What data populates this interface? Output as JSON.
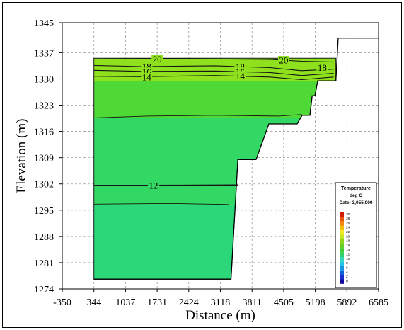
{
  "chart_data": {
    "type": "area",
    "title": "",
    "xlabel": "Distance (m)",
    "ylabel": "Elevation (m)",
    "xlim": [
      -350,
      6585
    ],
    "ylim": [
      1274,
      1345
    ],
    "x_ticks": [
      "-350",
      "344",
      "1037",
      "1731",
      "2424",
      "3118",
      "3811",
      "4505",
      "5198",
      "5892",
      "6585"
    ],
    "y_ticks": [
      "1274",
      "1281",
      "1288",
      "1295",
      "1302",
      "1309",
      "1316",
      "1323",
      "1330",
      "1337",
      "1345"
    ],
    "x_tick_values": [
      -350,
      344,
      1037,
      1731,
      2424,
      3118,
      3811,
      4505,
      5198,
      5892,
      6585
    ],
    "y_tick_values": [
      1274,
      1281,
      1288,
      1295,
      1302,
      1309,
      1316,
      1323,
      1330,
      1337,
      1345
    ],
    "grid": true,
    "surface_elevation": 1335.5,
    "bottom_profile": [
      [
        344,
        1276.6
      ],
      [
        3118,
        1276.6
      ],
      [
        3118,
        1276.6
      ],
      [
        3350,
        1276.6
      ],
      [
        3500,
        1308.5
      ],
      [
        3900,
        1308.5
      ],
      [
        4180,
        1318.0
      ],
      [
        4800,
        1318.0
      ],
      [
        4910,
        1320.3
      ],
      [
        5080,
        1320.3
      ],
      [
        5130,
        1325.5
      ],
      [
        5190,
        1325.5
      ],
      [
        5250,
        1329.5
      ],
      [
        5650,
        1329.5
      ],
      [
        5700,
        1340.9
      ],
      [
        6585,
        1340.9
      ]
    ],
    "contours": [
      {
        "label": "20",
        "points": [
          [
            344,
            1335.3
          ],
          [
            2000,
            1335.4
          ],
          [
            4200,
            1335.2
          ],
          [
            4900,
            1334.7
          ],
          [
            5600,
            1334.5
          ]
        ],
        "label_positions": [
          [
            1731,
            1335.3
          ],
          [
            4505,
            1335.0
          ]
        ]
      },
      {
        "label": "18",
        "points": [
          [
            344,
            1333.6
          ],
          [
            1400,
            1333.3
          ],
          [
            3000,
            1333.5
          ],
          [
            4200,
            1333.0
          ],
          [
            4900,
            1332.2
          ],
          [
            5600,
            1332.6
          ]
        ],
        "label_positions": [
          [
            1500,
            1333.3
          ],
          [
            3550,
            1333.2
          ],
          [
            5350,
            1333.0
          ]
        ]
      },
      {
        "label": "16",
        "points": [
          [
            344,
            1332.3
          ],
          [
            1400,
            1332.0
          ],
          [
            3000,
            1332.1
          ],
          [
            4200,
            1331.7
          ],
          [
            4900,
            1330.9
          ],
          [
            5600,
            1331.5
          ]
        ],
        "label_positions": [
          [
            1500,
            1331.9
          ],
          [
            3550,
            1331.9
          ]
        ]
      },
      {
        "label": "14",
        "points": [
          [
            344,
            1330.7
          ],
          [
            1400,
            1330.6
          ],
          [
            3000,
            1330.9
          ],
          [
            4200,
            1330.5
          ],
          [
            4900,
            1329.8
          ],
          [
            5600,
            1330.5
          ]
        ],
        "label_positions": [
          [
            1500,
            1330.5
          ],
          [
            3550,
            1330.7
          ]
        ]
      },
      {
        "label": "12",
        "points": [
          [
            344,
            1301.6
          ],
          [
            1500,
            1301.6
          ],
          [
            3500,
            1301.7
          ]
        ],
        "label_positions": [
          [
            1650,
            1301.6
          ]
        ]
      }
    ],
    "legend": {
      "title": "Temperature",
      "unit": "deg C",
      "date_label": "Date: 3,055.000",
      "placement": "bottom-right",
      "values": [
        "30",
        "28",
        "26",
        "24",
        "22",
        "20",
        "18",
        "16",
        "14",
        "12",
        "10",
        "8",
        "6",
        "4",
        "2",
        "0"
      ],
      "colors": [
        "#d21a00",
        "#e9540c",
        "#ef8b0a",
        "#f3bf09",
        "#eee91e",
        "#c4e621",
        "#8dd31e",
        "#62d02a",
        "#3fcf34",
        "#2fd06b",
        "#2fd6b9",
        "#21c5e2",
        "#1796e0",
        "#1460d8",
        "#1a2fd0",
        "#1209a5"
      ]
    },
    "fill_colors": {
      "surface": "#8fe11e",
      "middle": "#4fd936",
      "deep": "#33d763",
      "deepest": "#2cd77a"
    }
  }
}
